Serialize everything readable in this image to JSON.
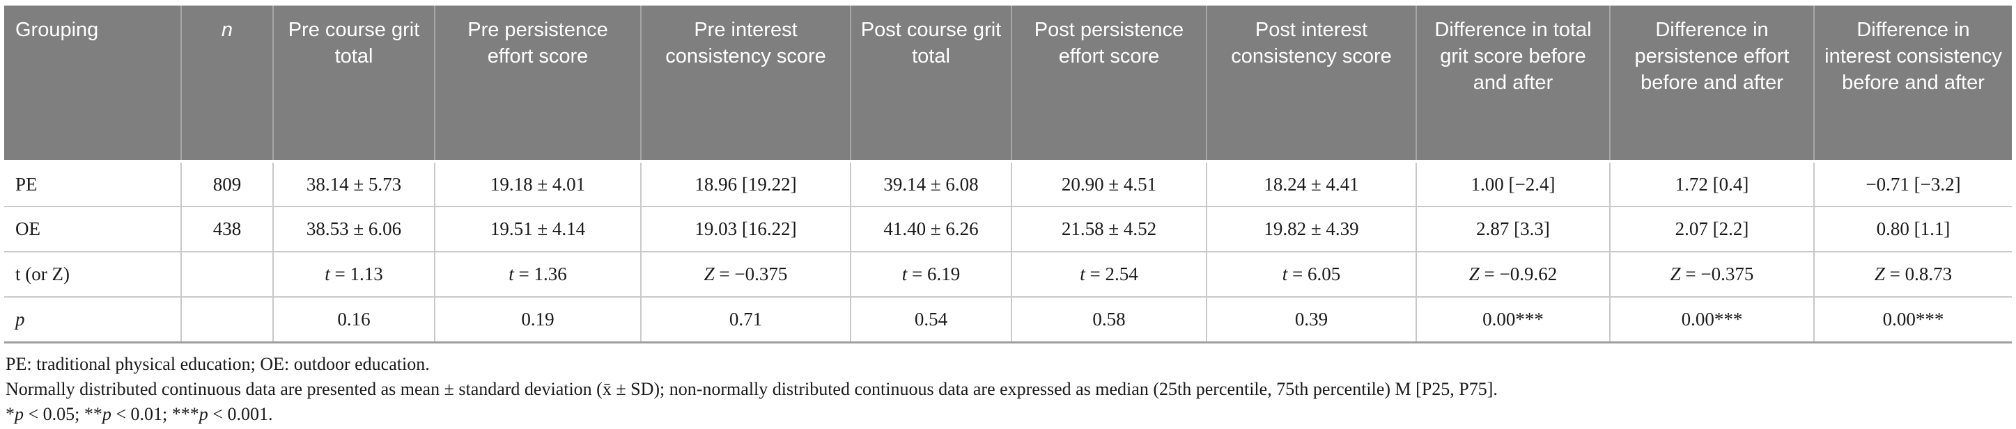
{
  "table": {
    "columns": [
      "Grouping",
      "n",
      "Pre course grit total",
      "Pre persistence effort score",
      "Pre interest consistency score",
      "Post course grit total",
      "Post persistence effort score",
      "Post interest consistency score",
      "Difference in total grit score before and after",
      "Difference in persistence effort before and after",
      "Difference in interest consistency before and after"
    ],
    "rows": [
      [
        "PE",
        "809",
        "38.14 ± 5.73",
        "19.18 ± 4.01",
        "18.96 [19.22]",
        "39.14 ± 6.08",
        "20.90 ± 4.51",
        "18.24 ± 4.41",
        "1.00 [−2.4]",
        "1.72 [0.4]",
        "−0.71 [−3.2]"
      ],
      [
        "OE",
        "438",
        "38.53 ± 6.06",
        "19.51 ± 4.14",
        "19.03 [16.22]",
        "41.40 ± 6.26",
        "21.58 ± 4.52",
        "19.82 ± 4.39",
        "2.87 [3.3]",
        "2.07 [2.2]",
        "0.80 [1.1]"
      ],
      [
        "t (or Z)",
        "",
        "t = 1.13",
        "t = 1.36",
        "Z = −0.375",
        "t = 6.19",
        "t = 2.54",
        "t = 6.05",
        "Z = −0.9.62",
        "Z = −0.375",
        "Z = 0.8.73"
      ],
      [
        "p",
        "",
        "0.16",
        "0.19",
        "0.71",
        "0.54",
        "0.58",
        "0.39",
        "0.00***",
        "0.00***",
        "0.00***"
      ]
    ]
  },
  "footnotes": [
    "PE: traditional physical education; OE: outdoor education.",
    "Normally distributed continuous data are presented as mean ± standard deviation (x̄ ± SD); non-normally distributed continuous data are expressed as median (25th percentile, 75th percentile) M [P25, P75].",
    "*p < 0.05; **p < 0.01; ***p < 0.001."
  ],
  "colors": {
    "header_bg": "#7f7f7f",
    "header_text": "#ffffff",
    "body_text": "#1a1a1a",
    "row_grid": "#c9c9c9",
    "header_grid": "#a6a6a6",
    "bottom_border": "#9e9e9e"
  }
}
